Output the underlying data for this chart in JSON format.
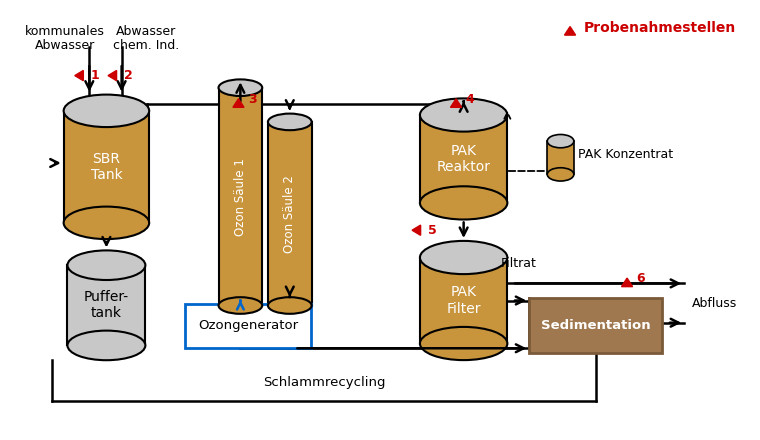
{
  "background_color": "#ffffff",
  "colors": {
    "cylinder_body": "#c8943c",
    "cylinder_top": "#c8c8c8",
    "sedimentation_fill": "#a07850",
    "sedimentation_border": "#7a5a38",
    "black": "#000000",
    "red": "#cc0000",
    "blue": "#0066cc"
  },
  "labels": {
    "kommunales": "kommunales",
    "abwasser": "Abwasser",
    "abwasser_chem": "Abwasser",
    "chem_ind": "chem. Ind.",
    "sbr_tank": "SBR\nTank",
    "puffer_tank": "Puffer-\ntank",
    "ozon_saule1": "Ozon Säule 1",
    "ozon_saule2": "Ozon Säule 2",
    "pak_reaktor": "PAK\nReaktor",
    "pak_filter": "PAK\nFilter",
    "pak_konzentrat": "PAK Konzentrat",
    "sedimentation": "Sedimentation",
    "ozongenerator": "Ozongenerator",
    "filtrat": "Filtrat",
    "abfluss": "Abfluss",
    "schlammrecycling": "Schlammrecycling",
    "probenahmestellen": "Probenahmestellen"
  }
}
